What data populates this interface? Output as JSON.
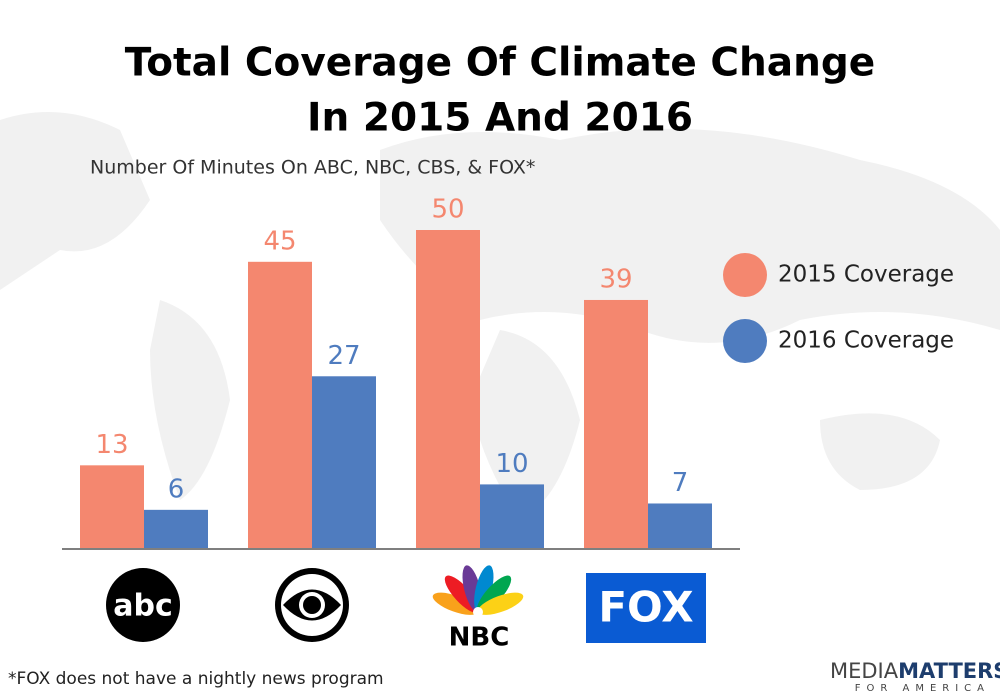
{
  "chart_data": {
    "type": "bar",
    "title": [
      "Total Coverage Of Climate Change",
      "In 2015 And 2016"
    ],
    "subtitle": "Number Of Minutes On ABC, NBC, CBS, & FOX*",
    "categories": [
      "abc",
      null,
      "NBC",
      "FOX"
    ],
    "series": [
      {
        "name": "2015 Coverage",
        "color": "#f4876f",
        "values": [
          13,
          45,
          50,
          39
        ]
      },
      {
        "name": "2016 Coverage",
        "color": "#4f7cbf",
        "values": [
          6,
          27,
          10,
          7
        ]
      }
    ],
    "legend": "right",
    "note": "*FOX does not have a nightly news program"
  },
  "branding": {
    "media": "MEDIA",
    "matters": "MATTERS",
    "tagline": "FOR AMERICA"
  }
}
